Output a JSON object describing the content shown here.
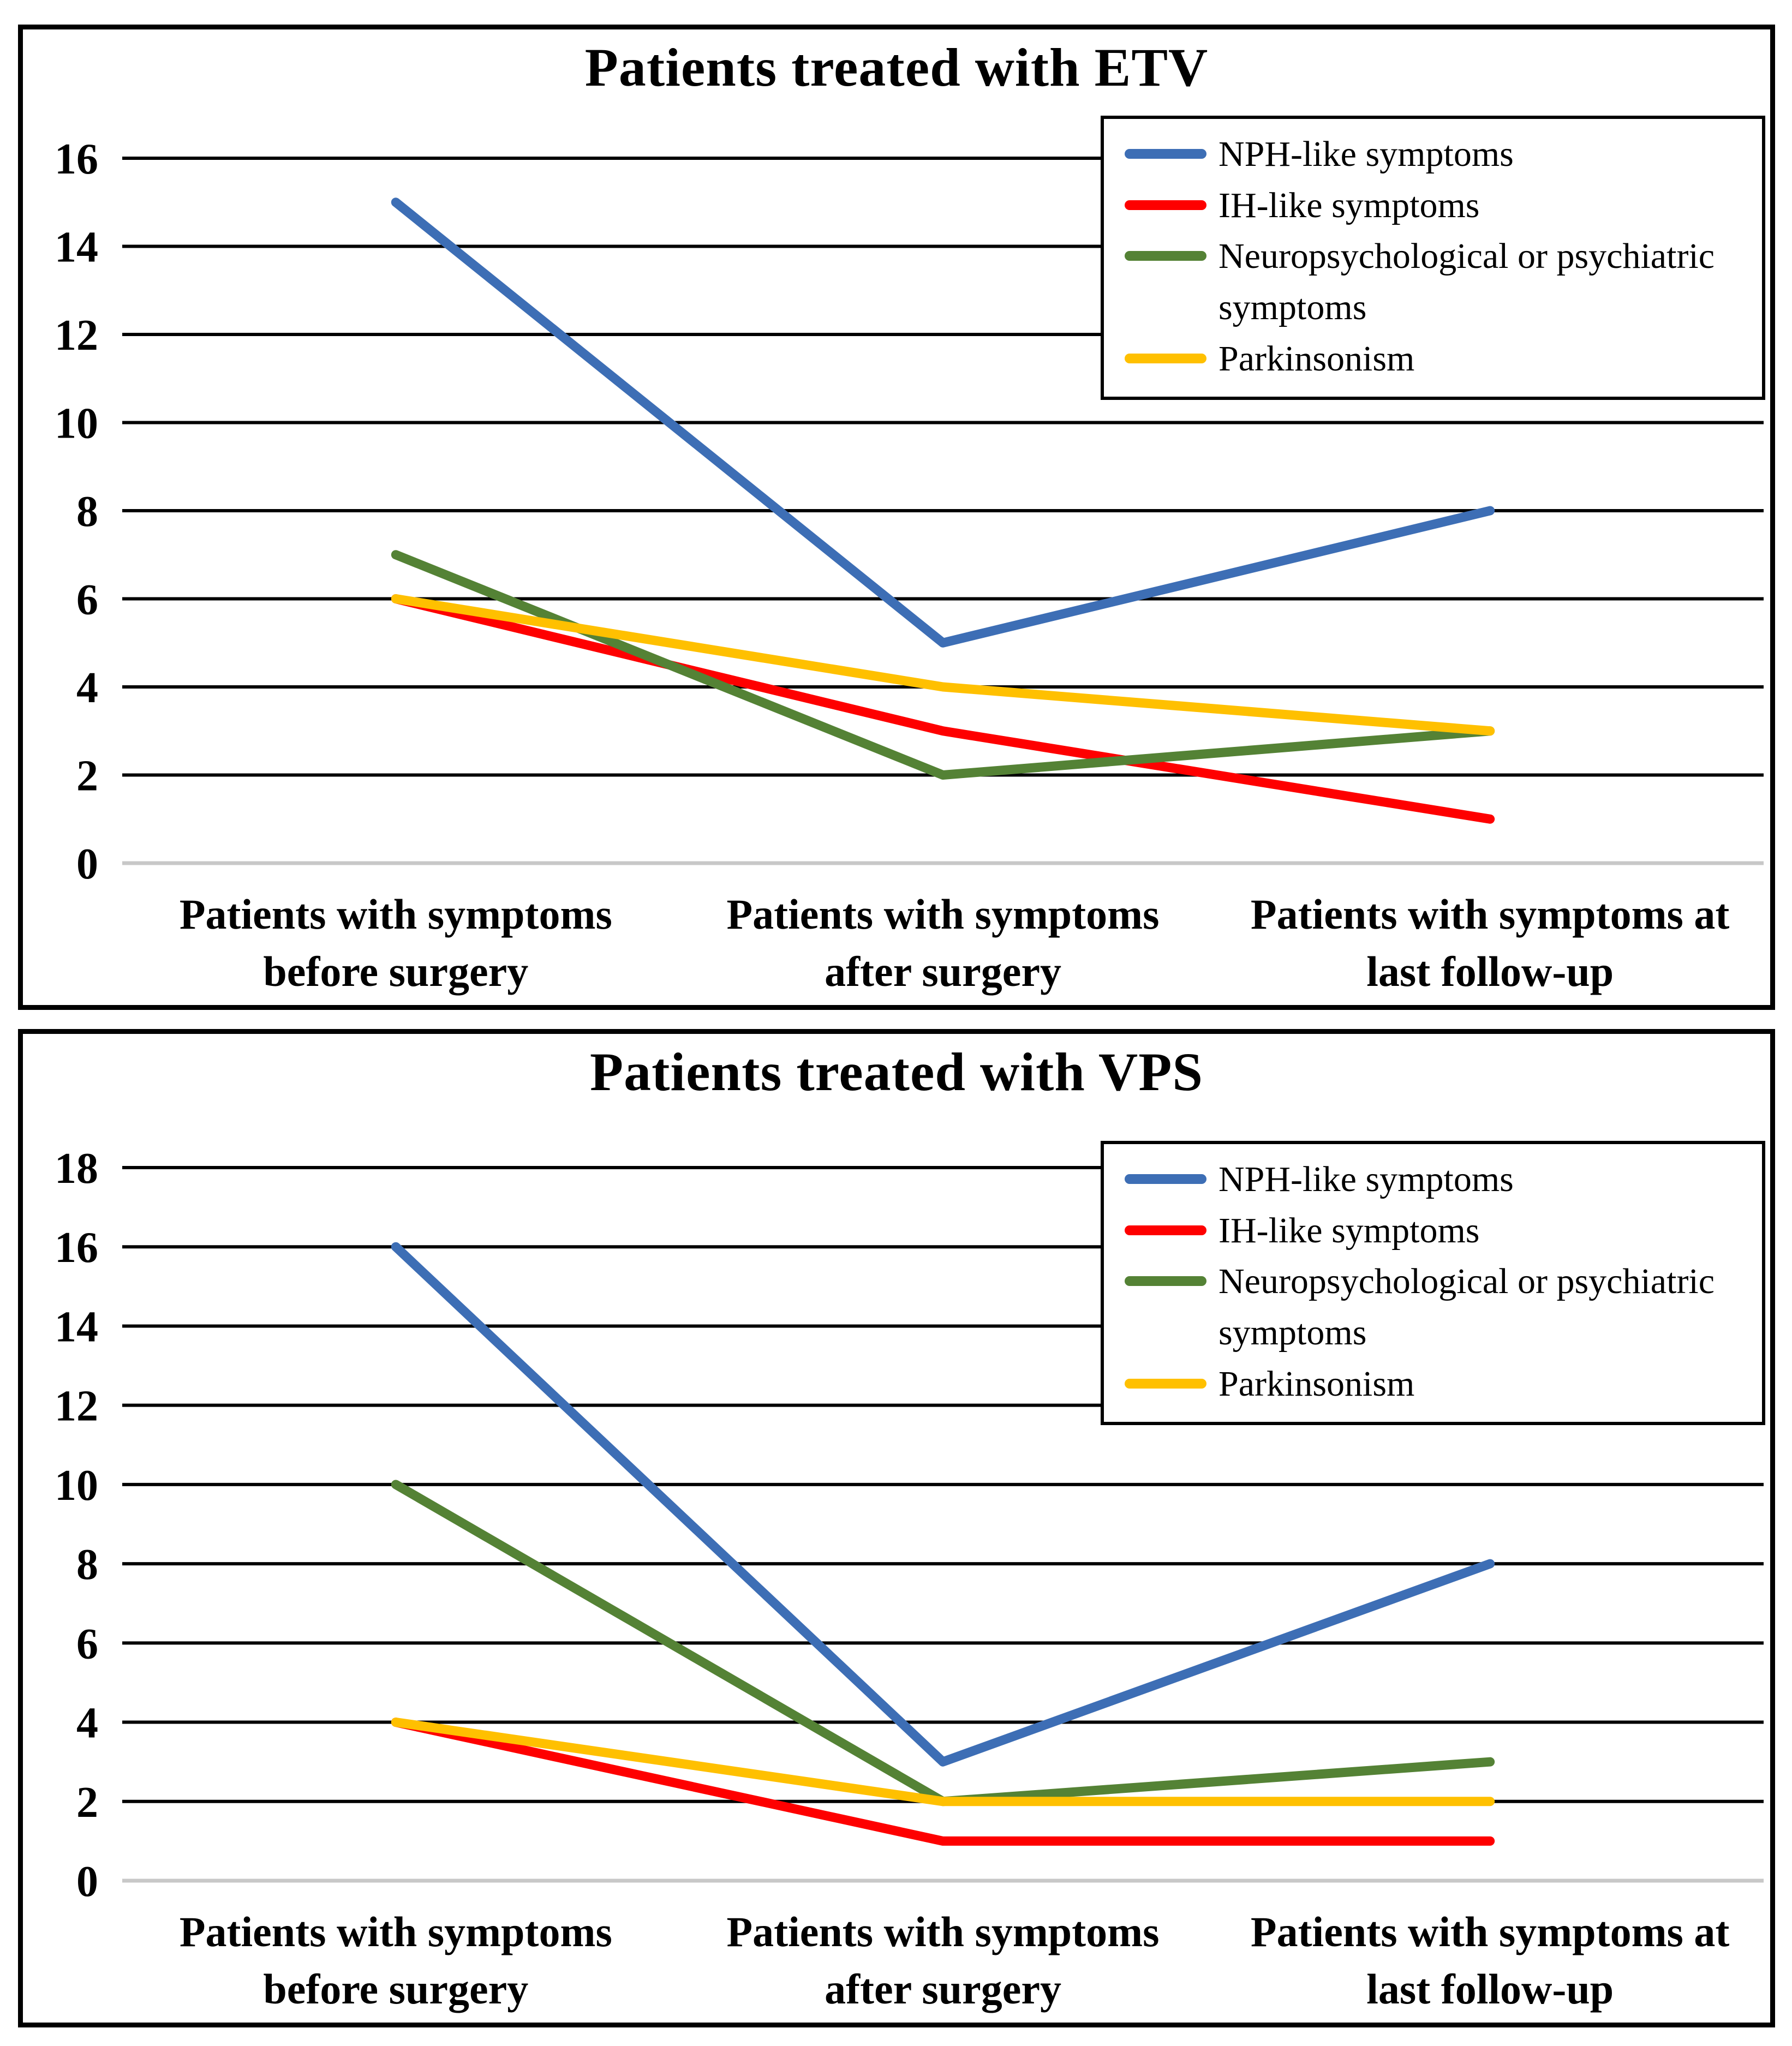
{
  "colors": {
    "nph": "#3D6EB5",
    "ih": "#FE0000",
    "neuro": "#548235",
    "park": "#FFC000",
    "gridline": "#000000",
    "zero_axis": "#C8C8C8",
    "panel_border": "#000000",
    "text": "#000000",
    "background": "#FFFFFF"
  },
  "legend": {
    "position": "top-right",
    "items": [
      {
        "label": "NPH-like symptoms",
        "color": "nph"
      },
      {
        "label": "IH-like symptoms",
        "color": "ih"
      },
      {
        "label": "Neuropsychological or psychiatric symptoms",
        "color": "neuro"
      },
      {
        "label": "Parkinsonism",
        "color": "park"
      }
    ]
  },
  "chart_data": [
    {
      "type": "line",
      "title": "Patients treated with ETV",
      "categories": [
        "Patients with symptoms before surgery",
        "Patients with symptoms after surgery",
        "Patients with symptoms at last follow-up"
      ],
      "category_label_lines": [
        [
          "Patients with symptoms",
          "before surgery"
        ],
        [
          "Patients with symptoms",
          "after surgery"
        ],
        [
          "Patients with symptoms at",
          "last follow-up"
        ]
      ],
      "xlabel": "",
      "ylabel": "",
      "ylim": [
        0,
        16
      ],
      "ytick_step": 2,
      "grid": true,
      "legend_position": "top-right",
      "series": [
        {
          "name": "NPH-like symptoms",
          "color": "nph",
          "values": [
            15,
            5,
            8
          ]
        },
        {
          "name": "IH-like symptoms",
          "color": "ih",
          "values": [
            6,
            3,
            1
          ]
        },
        {
          "name": "Neuropsychological or psychiatric symptoms",
          "color": "neuro",
          "values": [
            7,
            2,
            3
          ]
        },
        {
          "name": "Parkinsonism",
          "color": "park",
          "values": [
            6,
            4,
            3
          ]
        }
      ]
    },
    {
      "type": "line",
      "title": "Patients treated with VPS",
      "categories": [
        "Patients with symptoms before surgery",
        "Patients with symptoms after surgery",
        "Patients with symptoms at last follow-up"
      ],
      "category_label_lines": [
        [
          "Patients with symptoms",
          "before surgery"
        ],
        [
          "Patients with symptoms",
          "after surgery"
        ],
        [
          "Patients with symptoms at",
          "last follow-up"
        ]
      ],
      "xlabel": "",
      "ylabel": "",
      "ylim": [
        0,
        18
      ],
      "ytick_step": 2,
      "grid": true,
      "legend_position": "top-right",
      "series": [
        {
          "name": "NPH-like symptoms",
          "color": "nph",
          "values": [
            16,
            3,
            8
          ]
        },
        {
          "name": "IH-like symptoms",
          "color": "ih",
          "values": [
            4,
            1,
            1
          ]
        },
        {
          "name": "Neuropsychological or psychiatric symptoms",
          "color": "neuro",
          "values": [
            10,
            2,
            3
          ]
        },
        {
          "name": "Parkinsonism",
          "color": "park",
          "values": [
            4,
            2,
            2
          ]
        }
      ]
    }
  ]
}
